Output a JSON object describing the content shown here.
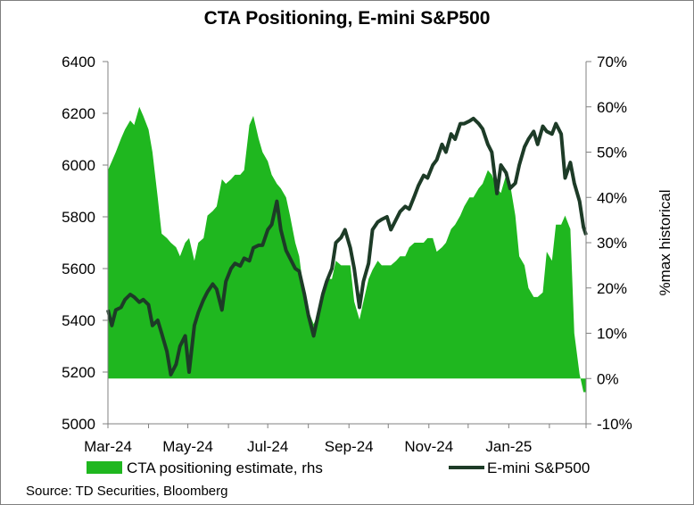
{
  "chart_data": {
    "type": "area",
    "title": "CTA Positioning, E-mini S&P500",
    "source": "Source: TD Securities, Bloomberg",
    "xlabel": "",
    "ylabel_left": "",
    "ylabel_right": "%max historical",
    "x_tick_labels": [
      "Mar-24",
      "May-24",
      "Jul-24",
      "Sep-24",
      "Nov-24",
      "Jan-25"
    ],
    "x_range": [
      "2024-03-01",
      "2025-03-01"
    ],
    "y_left": {
      "ticks": [
        "5000",
        "5200",
        "5400",
        "5600",
        "5800",
        "6000",
        "6200",
        "6400"
      ],
      "range": [
        5000,
        6400
      ]
    },
    "y_right": {
      "ticks": [
        "-10%",
        "0%",
        "10%",
        "20%",
        "30%",
        "40%",
        "50%",
        "60%",
        "70%"
      ],
      "range": [
        -10,
        70
      ]
    },
    "grid": false,
    "legend": {
      "placement": "bottom",
      "items": [
        "CTA positioning estimate, rhs",
        "E-mini S&P500"
      ]
    },
    "colors": {
      "cta": "#1fb71f",
      "spx": "#1d3b27"
    },
    "series": [
      {
        "name": "CTA positioning estimate, rhs",
        "axis": "right",
        "style": "area",
        "x": [
          "2024-03-01",
          "2024-03-04",
          "2024-03-07",
          "2024-03-11",
          "2024-03-14",
          "2024-03-18",
          "2024-03-21",
          "2024-03-25",
          "2024-03-28",
          "2024-04-01",
          "2024-04-04",
          "2024-04-08",
          "2024-04-11",
          "2024-04-15",
          "2024-04-18",
          "2024-04-22",
          "2024-04-25",
          "2024-04-29",
          "2024-05-02",
          "2024-05-06",
          "2024-05-09",
          "2024-05-13",
          "2024-05-16",
          "2024-05-20",
          "2024-05-23",
          "2024-05-27",
          "2024-05-30",
          "2024-06-03",
          "2024-06-06",
          "2024-06-10",
          "2024-06-13",
          "2024-06-17",
          "2024-06-20",
          "2024-06-24",
          "2024-06-27",
          "2024-07-01",
          "2024-07-04",
          "2024-07-08",
          "2024-07-11",
          "2024-07-15",
          "2024-07-18",
          "2024-07-22",
          "2024-07-25",
          "2024-07-29",
          "2024-08-01",
          "2024-08-05",
          "2024-08-08",
          "2024-08-12",
          "2024-08-15",
          "2024-08-19",
          "2024-08-22",
          "2024-08-26",
          "2024-08-29",
          "2024-09-02",
          "2024-09-05",
          "2024-09-09",
          "2024-09-12",
          "2024-09-16",
          "2024-09-19",
          "2024-09-23",
          "2024-09-26",
          "2024-09-30",
          "2024-10-03",
          "2024-10-07",
          "2024-10-10",
          "2024-10-14",
          "2024-10-17",
          "2024-10-21",
          "2024-10-24",
          "2024-10-28",
          "2024-10-31",
          "2024-11-04",
          "2024-11-07",
          "2024-11-11",
          "2024-11-14",
          "2024-11-18",
          "2024-11-21",
          "2024-11-25",
          "2024-11-28",
          "2024-12-02",
          "2024-12-05",
          "2024-12-09",
          "2024-12-12",
          "2024-12-16",
          "2024-12-19",
          "2024-12-23",
          "2024-12-26",
          "2024-12-30",
          "2025-01-02",
          "2025-01-06",
          "2025-01-09",
          "2025-01-13",
          "2025-01-16",
          "2025-01-20",
          "2025-01-23",
          "2025-01-27",
          "2025-01-30",
          "2025-02-03",
          "2025-02-06",
          "2025-02-10",
          "2025-02-13",
          "2025-02-17",
          "2025-02-20",
          "2025-02-24",
          "2025-02-27",
          "2025-03-01"
        ],
        "values": [
          46,
          48,
          50,
          53,
          55,
          57,
          56,
          60,
          58,
          55,
          50,
          40,
          32,
          31,
          30,
          29,
          27,
          30,
          31,
          26,
          30,
          31,
          36,
          37,
          38,
          44,
          43,
          44,
          45,
          45,
          46,
          56,
          58,
          53,
          50,
          48,
          45,
          43,
          42,
          40,
          36,
          30,
          27,
          18,
          15,
          12,
          14,
          17,
          22,
          22,
          26,
          25,
          25,
          25,
          17,
          13,
          17,
          22,
          24,
          26,
          25,
          25,
          25,
          26,
          27,
          27,
          29,
          30,
          30,
          30,
          31,
          31,
          28,
          29,
          30,
          33,
          34,
          36,
          38,
          40,
          40,
          42,
          43,
          46,
          45,
          42,
          41,
          45,
          43,
          36,
          27,
          25,
          20,
          18,
          18,
          19,
          28,
          26,
          34,
          34,
          36,
          33,
          10,
          1,
          -3,
          -3
        ]
      },
      {
        "name": "E-mini S&P500",
        "axis": "left",
        "style": "line",
        "x": [
          "2024-03-01",
          "2024-03-04",
          "2024-03-07",
          "2024-03-11",
          "2024-03-14",
          "2024-03-18",
          "2024-03-21",
          "2024-03-25",
          "2024-03-28",
          "2024-04-01",
          "2024-04-04",
          "2024-04-08",
          "2024-04-11",
          "2024-04-15",
          "2024-04-18",
          "2024-04-22",
          "2024-04-25",
          "2024-04-29",
          "2024-05-02",
          "2024-05-06",
          "2024-05-09",
          "2024-05-13",
          "2024-05-16",
          "2024-05-20",
          "2024-05-23",
          "2024-05-27",
          "2024-05-30",
          "2024-06-03",
          "2024-06-06",
          "2024-06-10",
          "2024-06-13",
          "2024-06-17",
          "2024-06-20",
          "2024-06-24",
          "2024-06-27",
          "2024-07-01",
          "2024-07-04",
          "2024-07-08",
          "2024-07-11",
          "2024-07-15",
          "2024-07-18",
          "2024-07-22",
          "2024-07-25",
          "2024-07-29",
          "2024-08-01",
          "2024-08-05",
          "2024-08-08",
          "2024-08-12",
          "2024-08-15",
          "2024-08-19",
          "2024-08-22",
          "2024-08-26",
          "2024-08-29",
          "2024-09-02",
          "2024-09-05",
          "2024-09-09",
          "2024-09-12",
          "2024-09-16",
          "2024-09-19",
          "2024-09-23",
          "2024-09-26",
          "2024-09-30",
          "2024-10-03",
          "2024-10-07",
          "2024-10-10",
          "2024-10-14",
          "2024-10-17",
          "2024-10-21",
          "2024-10-24",
          "2024-10-28",
          "2024-10-31",
          "2024-11-04",
          "2024-11-07",
          "2024-11-11",
          "2024-11-14",
          "2024-11-18",
          "2024-11-21",
          "2024-11-25",
          "2024-11-28",
          "2024-12-02",
          "2024-12-05",
          "2024-12-09",
          "2024-12-12",
          "2024-12-16",
          "2024-12-19",
          "2024-12-23",
          "2024-12-26",
          "2024-12-30",
          "2025-01-02",
          "2025-01-06",
          "2025-01-09",
          "2025-01-13",
          "2025-01-16",
          "2025-01-20",
          "2025-01-23",
          "2025-01-27",
          "2025-01-30",
          "2025-02-03",
          "2025-02-06",
          "2025-02-10",
          "2025-02-13",
          "2025-02-17",
          "2025-02-20",
          "2025-02-24",
          "2025-02-27",
          "2025-03-01"
        ],
        "values": [
          5440,
          5380,
          5440,
          5450,
          5480,
          5500,
          5490,
          5470,
          5480,
          5460,
          5380,
          5400,
          5350,
          5280,
          5190,
          5230,
          5300,
          5340,
          5200,
          5380,
          5430,
          5480,
          5510,
          5540,
          5520,
          5440,
          5550,
          5600,
          5620,
          5610,
          5640,
          5630,
          5680,
          5690,
          5690,
          5750,
          5770,
          5860,
          5750,
          5670,
          5640,
          5600,
          5590,
          5500,
          5420,
          5340,
          5410,
          5500,
          5550,
          5600,
          5700,
          5720,
          5750,
          5680,
          5600,
          5450,
          5550,
          5620,
          5750,
          5780,
          5790,
          5800,
          5750,
          5790,
          5820,
          5840,
          5830,
          5880,
          5920,
          5960,
          5950,
          6000,
          6020,
          6080,
          6050,
          6120,
          6100,
          6160,
          6160,
          6170,
          6180,
          6160,
          6140,
          6080,
          6050,
          5890,
          6000,
          5970,
          5910,
          5930,
          6000,
          6070,
          6100,
          6130,
          6080,
          6150,
          6130,
          6120,
          6160,
          6120,
          5950,
          6010,
          5930,
          5860,
          5760,
          5730
        ]
      }
    ]
  }
}
